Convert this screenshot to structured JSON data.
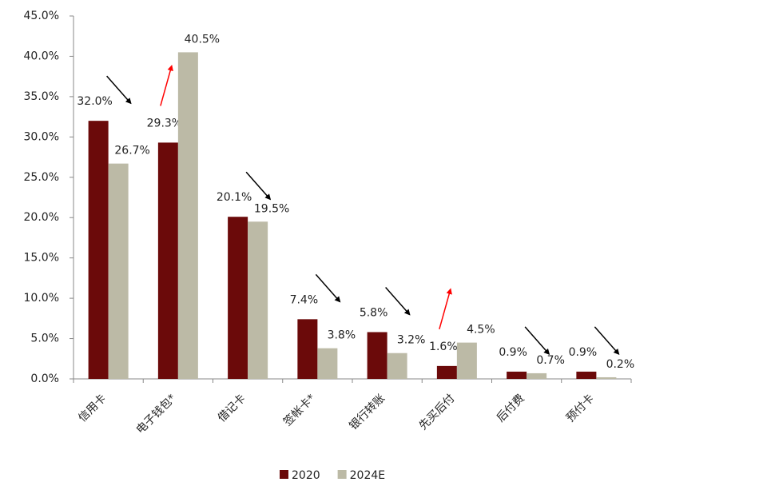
{
  "chart_data": {
    "type": "bar",
    "categories": [
      "信用卡",
      "电子钱包*",
      "借记卡",
      "签帐卡*",
      "银行转账",
      "先买后付",
      "后付费",
      "预付卡"
    ],
    "series": [
      {
        "name": "2020",
        "color": "#6b0a0a",
        "values": [
          32.0,
          29.3,
          20.1,
          7.4,
          5.8,
          1.6,
          0.9,
          0.9
        ],
        "value_labels": [
          "32.0%",
          "29.3%",
          "20.1%",
          "7.4%",
          "5.8%",
          "1.6%",
          "0.9%",
          "0.9%"
        ]
      },
      {
        "name": "2024E",
        "color": "#bcbaa6",
        "values": [
          26.7,
          40.5,
          19.5,
          3.8,
          3.2,
          4.5,
          0.7,
          0.2
        ],
        "value_labels": [
          "26.7%",
          "40.5%",
          "19.5%",
          "3.8%",
          "3.2%",
          "4.5%",
          "0.7%",
          "0.2%"
        ]
      }
    ],
    "ylim": [
      0,
      45
    ],
    "yticks": [
      {
        "value": 0,
        "label": "0.0%"
      },
      {
        "value": 5,
        "label": "5.0%"
      },
      {
        "value": 10,
        "label": "10.0%"
      },
      {
        "value": 15,
        "label": "15.0%"
      },
      {
        "value": 20,
        "label": "20.0%"
      },
      {
        "value": 25,
        "label": "25.0%"
      },
      {
        "value": 30,
        "label": "30.0%"
      },
      {
        "value": 35,
        "label": "35.0%"
      },
      {
        "value": 40,
        "label": "40.0%"
      },
      {
        "value": 45,
        "label": "45.0%"
      }
    ],
    "legend": "bottom"
  }
}
